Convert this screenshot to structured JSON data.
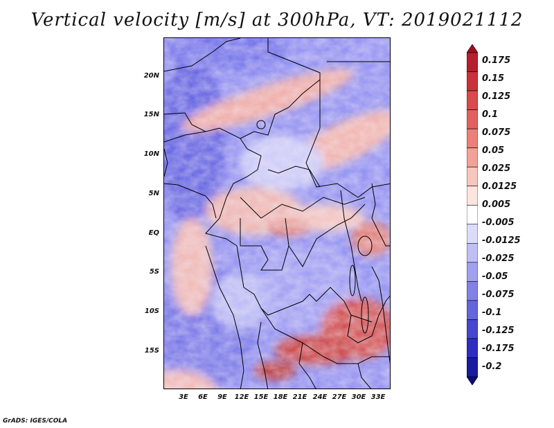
{
  "title": "Vertical velocity [m/s] at 300hPa, VT: 2019021112",
  "lat_labels": [
    "20N",
    "15N",
    "10N",
    "5N",
    "EQ",
    "5S",
    "10S",
    "15S"
  ],
  "lon_labels": [
    "3E",
    "6E",
    "9E",
    "12E",
    "15E",
    "18E",
    "21E",
    "24E",
    "27E",
    "30E",
    "33E"
  ],
  "colorbar": {
    "labels": [
      "0.175",
      "0.15",
      "0.125",
      "0.1",
      "0.075",
      "0.05",
      "0.025",
      "0.0125",
      "0.005",
      "-0.005",
      "-0.0125",
      "-0.025",
      "-0.05",
      "-0.075",
      "-0.1",
      "-0.125",
      "-0.175",
      "-0.2"
    ],
    "colors": [
      "#9e0f1e",
      "#b5202c",
      "#c8323a",
      "#d84a4b",
      "#e2615f",
      "#eb8078",
      "#f2a297",
      "#f8c6bd",
      "#fde4df",
      "#ffffff",
      "#dcdcfa",
      "#bfbff5",
      "#a0a0ee",
      "#8282e6",
      "#6464dc",
      "#4646d0",
      "#2d2dc0",
      "#1a1a9e",
      "#0c0c7a"
    ]
  },
  "credit": "GrADS: IGES/COLA"
}
